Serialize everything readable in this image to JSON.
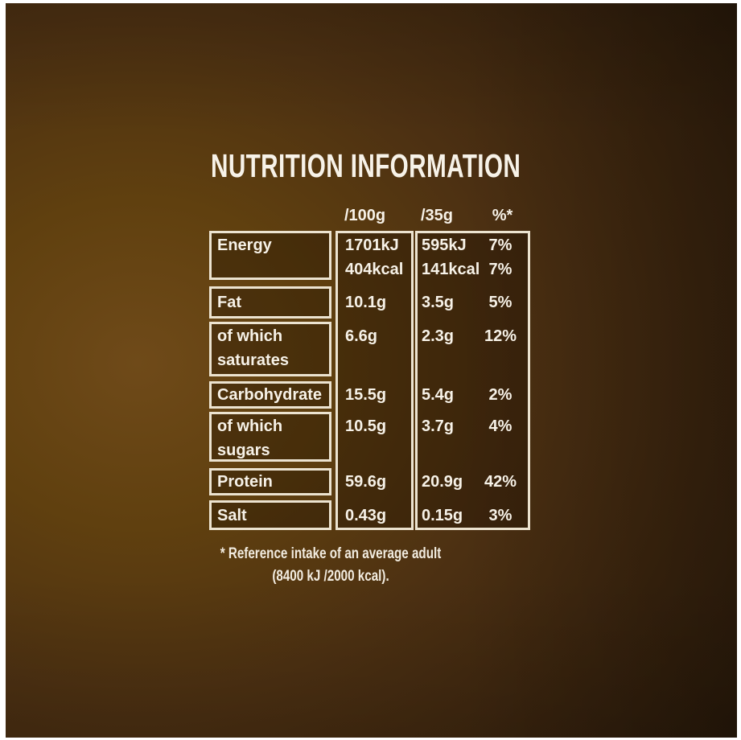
{
  "panel": {
    "title": "NUTRITION INFORMATION",
    "columns": {
      "per100": "/100g",
      "per35": "/35g",
      "pct": "%*"
    },
    "rows": [
      {
        "label_lines": [
          "Energy"
        ],
        "per100": [
          "1701kJ",
          "404kcal"
        ],
        "per35": [
          "595kJ",
          "141kcal"
        ],
        "pct": [
          "7%",
          "7%"
        ]
      },
      {
        "label_lines": [
          "Fat"
        ],
        "per100": [
          "10.1g"
        ],
        "per35": [
          "3.5g"
        ],
        "pct": [
          "5%"
        ]
      },
      {
        "label_lines": [
          "of which",
          "saturates"
        ],
        "per100": [
          "6.6g"
        ],
        "per35": [
          "2.3g"
        ],
        "pct": [
          "12%"
        ]
      },
      {
        "label_lines": [
          "Carbohydrate"
        ],
        "per100": [
          "15.5g"
        ],
        "per35": [
          "5.4g"
        ],
        "pct": [
          "2%"
        ]
      },
      {
        "label_lines": [
          "of which",
          "sugars"
        ],
        "per100": [
          "10.5g"
        ],
        "per35": [
          "3.7g"
        ],
        "pct": [
          "4%"
        ]
      },
      {
        "label_lines": [
          "Protein"
        ],
        "per100": [
          "59.6g"
        ],
        "per35": [
          "20.9g"
        ],
        "pct": [
          "42%"
        ]
      },
      {
        "label_lines": [
          "Salt"
        ],
        "per100": [
          "0.43g"
        ],
        "per35": [
          "0.15g"
        ],
        "pct": [
          "3%"
        ]
      }
    ],
    "footnote": [
      "* Reference intake of an average adult",
      "(8400 kJ /2000 kcal)."
    ],
    "colors": {
      "frame": "#ffffff",
      "background_light": "#6f4a19",
      "background_dark": "#26160a",
      "table_border": "#ece3d0",
      "text": "#f7f2e8"
    }
  }
}
